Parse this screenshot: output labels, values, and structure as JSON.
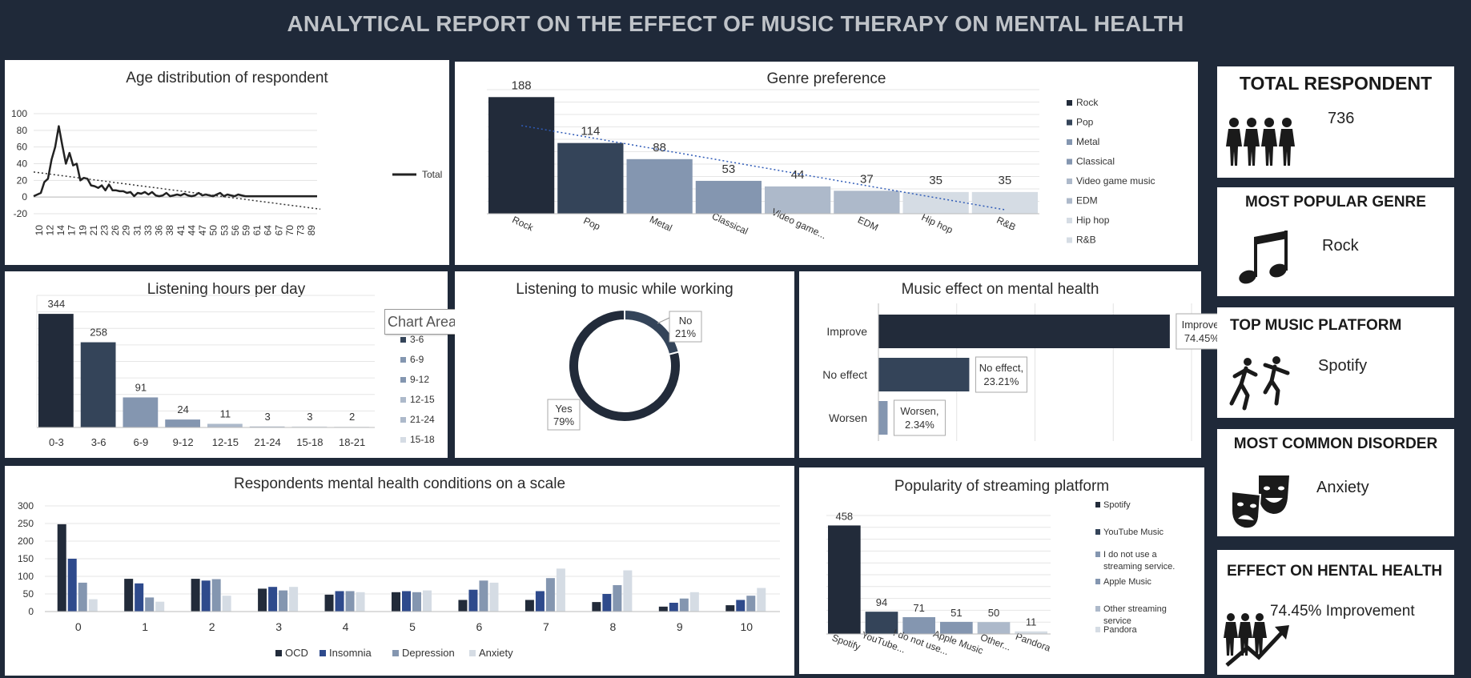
{
  "report_title": "ANALYTICAL REPORT ON THE EFFECT OF MUSIC THERAPY ON MENTAL HEALTH",
  "cards": [
    {
      "title": "TOTAL RESPONDENT",
      "value": "736",
      "icon": "people-icon"
    },
    {
      "title": "MOST POPULAR GENRE",
      "value": "Rock",
      "icon": "music-note-icon"
    },
    {
      "title": "TOP MUSIC  PLATFORM",
      "value": "Spotify",
      "icon": "dancers-icon"
    },
    {
      "title": "MOST COMMON DISORDER",
      "value": "Anxiety",
      "icon": "theater-masks-icon"
    },
    {
      "title": "EFFECT ON HENTAL HEALTH",
      "value": "74.45% Improvement",
      "icon": "growth-people-icon"
    }
  ],
  "tooltip": "Chart Area",
  "colors": {
    "background": "#1f2939",
    "dark": "#222b3a",
    "navy": "#344459",
    "mid": "#8496b0",
    "light": "#adb9ca",
    "pale": "#d5dce4",
    "blue": "#2e4a8c"
  },
  "chart_data": [
    {
      "id": "age",
      "type": "line",
      "title": "Age distribution of respondent",
      "x_tick_labels": [
        "10",
        "12",
        "14",
        "17",
        "19",
        "21",
        "23",
        "26",
        "29",
        "31",
        "33",
        "36",
        "38",
        "41",
        "44",
        "47",
        "50",
        "53",
        "56",
        "59",
        "61",
        "64",
        "67",
        "70",
        "73",
        "89"
      ],
      "x": [
        10,
        12,
        13,
        14,
        15,
        16,
        17,
        18,
        19,
        20,
        21,
        22,
        23,
        24,
        25,
        26,
        27,
        28,
        29,
        30,
        31,
        32,
        33,
        34,
        35,
        36,
        37,
        38,
        39,
        40,
        41,
        42,
        43,
        44,
        45,
        46,
        47,
        48,
        49,
        50,
        51,
        52,
        53,
        54,
        55,
        56,
        57,
        58,
        59,
        60,
        61,
        62,
        63,
        64,
        65,
        66,
        67,
        68,
        69,
        70,
        71,
        72,
        73,
        74,
        80,
        89
      ],
      "series": [
        {
          "name": "Total",
          "values": [
            1,
            5,
            18,
            22,
            45,
            60,
            85,
            62,
            40,
            53,
            38,
            40,
            20,
            23,
            22,
            14,
            13,
            11,
            14,
            8,
            15,
            8,
            8,
            7,
            7,
            5,
            6,
            1,
            5,
            4,
            6,
            3,
            6,
            2,
            1,
            2,
            5,
            1,
            2,
            3,
            2,
            4,
            2,
            1,
            2,
            5,
            2,
            3,
            2,
            1,
            3,
            5,
            1,
            3,
            2,
            1,
            3,
            2,
            1,
            1,
            1,
            1,
            1,
            1,
            1,
            1
          ]
        }
      ],
      "ylim": [
        -20,
        100
      ],
      "y_ticks": [
        -20,
        0,
        20,
        40,
        60,
        80,
        100
      ],
      "trendline": "linear",
      "legend": "right"
    },
    {
      "id": "genre",
      "type": "bar",
      "title": "Genre preference",
      "categories": [
        "Rock",
        "Pop",
        "Metal",
        "Classical",
        "Video game music",
        "EDM",
        "Hip hop",
        "R&B"
      ],
      "category_labels": [
        "Rock",
        "Pop",
        "Metal",
        "Classical",
        "Video game...",
        "EDM",
        "Hip hop",
        "R&B"
      ],
      "values": [
        188,
        114,
        88,
        53,
        44,
        37,
        35,
        35
      ],
      "trendline": "linear",
      "legend": "right"
    },
    {
      "id": "hours",
      "type": "bar",
      "title": "Listening hours per day",
      "categories": [
        "0-3",
        "3-6",
        "6-9",
        "9-12",
        "12-15",
        "21-24",
        "15-18",
        "18-21"
      ],
      "values": [
        344,
        258,
        91,
        24,
        11,
        3,
        3,
        2
      ],
      "legend_entries": [
        "3-6",
        "6-9",
        "9-12",
        "12-15",
        "21-24",
        "15-18"
      ],
      "legend": "right"
    },
    {
      "id": "working",
      "type": "pie",
      "title": "Listening to music while working",
      "categories": [
        "No",
        "Yes"
      ],
      "values": [
        21,
        79
      ],
      "labels": [
        "21%",
        "79%"
      ]
    },
    {
      "id": "effect",
      "type": "bar",
      "orientation": "horizontal",
      "title": "Music effect on mental health",
      "categories": [
        "Improve",
        "No effect",
        "Worsen"
      ],
      "values": [
        74.45,
        23.21,
        2.34
      ],
      "labels": [
        "Improve,",
        "No effect,",
        "Worsen,"
      ],
      "label_values": [
        "74.45%",
        "23.21%",
        "2.34%"
      ]
    },
    {
      "id": "conditions",
      "type": "bar",
      "title": "Respondents mental health conditions on a scale",
      "categories": [
        "0",
        "1",
        "2",
        "3",
        "4",
        "5",
        "6",
        "7",
        "8",
        "9",
        "10"
      ],
      "series": [
        {
          "name": "OCD",
          "values": [
            248,
            93,
            93,
            65,
            48,
            55,
            33,
            33,
            27,
            14,
            18
          ]
        },
        {
          "name": "Insomnia",
          "values": [
            150,
            80,
            88,
            70,
            58,
            58,
            62,
            58,
            50,
            25,
            33
          ]
        },
        {
          "name": "Depression",
          "values": [
            82,
            40,
            92,
            60,
            58,
            55,
            88,
            95,
            75,
            37,
            45
          ]
        },
        {
          "name": "Anxiety",
          "values": [
            35,
            28,
            45,
            70,
            55,
            60,
            82,
            122,
            117,
            55,
            67
          ]
        }
      ],
      "ylim": [
        0,
        300
      ],
      "y_ticks": [
        0,
        50,
        100,
        150,
        200,
        250,
        300
      ],
      "legend": "bottom"
    },
    {
      "id": "platform",
      "type": "bar",
      "title": "Popularity of streaming platform",
      "categories": [
        "Spotify",
        "YouTube Music",
        "I do not use a streaming service.",
        "Apple Music",
        "Other streaming service",
        "Pandora"
      ],
      "category_labels": [
        "Spotify",
        "YouTube...",
        "I do not use...",
        "Apple Music",
        "Other...",
        "Pandora"
      ],
      "values": [
        458,
        94,
        71,
        51,
        50,
        11
      ],
      "legend_entries": [
        "Spotify",
        "YouTube Music",
        "I do not use a|streaming service.",
        "Apple Music",
        "Other streaming|service",
        "Pandora"
      ],
      "legend": "right"
    }
  ]
}
